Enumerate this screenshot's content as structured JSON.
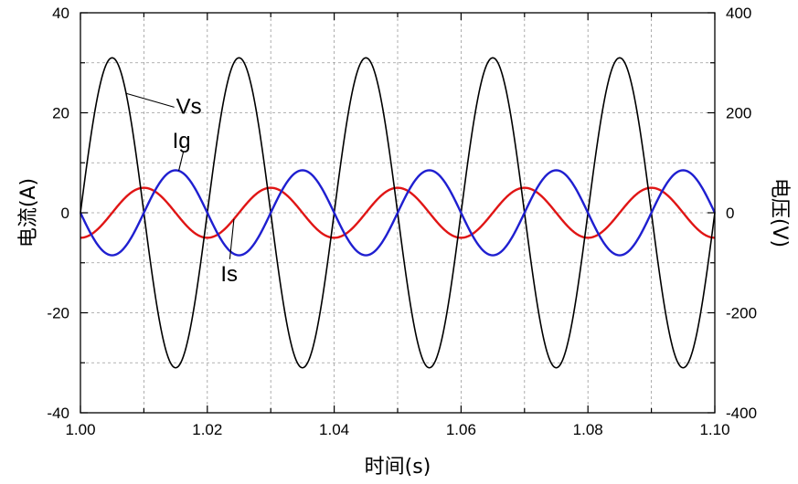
{
  "chart_data": {
    "type": "line",
    "xlabel": "时间(s)",
    "ylabel_left": "电流(A)",
    "ylabel_right": "电压(V)",
    "xlim": [
      1.0,
      1.1
    ],
    "ylim_left": [
      -40,
      40
    ],
    "ylim_right": [
      -400,
      400
    ],
    "x_ticks": [
      "1.00",
      "1.02",
      "1.04",
      "1.06",
      "1.08",
      "1.10"
    ],
    "y_ticks_left": [
      "40",
      "20",
      "0",
      "-20",
      "-40"
    ],
    "y_ticks_right": [
      "400",
      "200",
      "0",
      "-200",
      "-400"
    ],
    "grid": true,
    "colors": {
      "Vs": "#000000",
      "Ig": "#1f1fd0",
      "Is": "#e01515"
    },
    "series": [
      {
        "name": "Vs",
        "axis": "right",
        "kind": "sine",
        "amplitude": 310,
        "frequency_hz": 50,
        "phase_deg": 0,
        "peak_x": 1.005
      },
      {
        "name": "Ig",
        "axis": "left",
        "kind": "sine",
        "amplitude": 8.5,
        "frequency_hz": 50,
        "phase_deg": 180,
        "peak_x": 1.015
      },
      {
        "name": "Is",
        "axis": "left",
        "kind": "sine",
        "amplitude": 5,
        "frequency_hz": 50,
        "phase_deg": -90,
        "peak_x": 1.01
      }
    ],
    "annotations": [
      {
        "label": "Vs",
        "series": "Vs",
        "point_x": 1.0072,
        "text_x": 1.0145,
        "text_y_left": 20.2
      },
      {
        "label": "Ig",
        "series": "Ig",
        "point_x": 1.0155,
        "text_x": 1.0145,
        "text_y_left": 13.3
      },
      {
        "label": "Is",
        "series": "Is",
        "point_x": 1.0242,
        "text_x": 1.0221,
        "text_y_left": -13.3
      }
    ]
  }
}
